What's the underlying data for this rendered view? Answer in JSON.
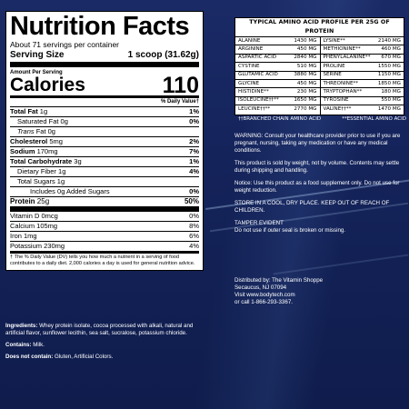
{
  "nutrition": {
    "title": "Nutrition Facts",
    "servings": "About 71 servings per container",
    "serving_size_label": "Serving Size",
    "serving_size_value": "1 scoop (31.62g)",
    "amount_per_serving": "Amount Per Serving",
    "calories_label": "Calories",
    "calories_value": "110",
    "daily_value_header": "% Daily Value†",
    "rows": [
      {
        "name": "Total Fat",
        "amount": "1g",
        "dv": "1%"
      },
      {
        "name": "Saturated Fat",
        "amount": "0g",
        "dv": "0%"
      },
      {
        "name": "Trans",
        "amount": "Fat 0g",
        "dv": ""
      },
      {
        "name": "Cholesterol",
        "amount": "5mg",
        "dv": "2%"
      },
      {
        "name": "Sodium",
        "amount": "170mg",
        "dv": "7%"
      },
      {
        "name": "Total Carbohydrate",
        "amount": "3g",
        "dv": "1%"
      },
      {
        "name": "Dietary Fiber",
        "amount": "1g",
        "dv": "4%"
      },
      {
        "name": "Total Sugars",
        "amount": "1g",
        "dv": ""
      },
      {
        "name": "Includes 0g Added Sugars",
        "amount": "",
        "dv": "0%"
      },
      {
        "name": "Protein",
        "amount": "25g",
        "dv": "50%"
      }
    ],
    "vitamins": [
      {
        "label": "Vitamin D 0mcg",
        "dv": "0%"
      },
      {
        "label": "Calcium 105mg",
        "dv": "8%"
      },
      {
        "label": "Iron 1mg",
        "dv": "6%"
      },
      {
        "label": "Potassium 230mg",
        "dv": "4%"
      }
    ],
    "footnote": "† The % Daily Value (DV) tells you how much a nutrient in a serving of food contributes to a daily diet. 2,000 calories a day is used for general nutrition advice."
  },
  "ingredients": {
    "label": "Ingredients:",
    "text": "Whey protein isolate, cocoa processed with alkali, natural and artificial flavor, sunflower lecithin, sea salt, sucralose, potassium chloride.",
    "contains_label": "Contains:",
    "contains_text": "Milk.",
    "not_contain_label": "Does not contain:",
    "not_contain_text": "Gluten, Artificial Colors."
  },
  "amino": {
    "title": "TYPICAL AMINO ACID PROFILE PER 25G OF PROTEIN",
    "rows": [
      [
        {
          "name": "Alanine",
          "value": "1430 mg"
        },
        {
          "name": "Lysine**",
          "value": "2140 mg"
        }
      ],
      [
        {
          "name": "Arginine",
          "value": "450 mg"
        },
        {
          "name": "Methionine**",
          "value": "460 mg"
        }
      ],
      [
        {
          "name": "Aspartic Acid",
          "value": "2840 mg"
        },
        {
          "name": "Phenylalanine**",
          "value": "670 mg"
        }
      ],
      [
        {
          "name": "Cystine",
          "value": "510 mg"
        },
        {
          "name": "Proline",
          "value": "1550 mg"
        }
      ],
      [
        {
          "name": "Glutamic Acid",
          "value": "3880 mg"
        },
        {
          "name": "Serine",
          "value": "1150 mg"
        }
      ],
      [
        {
          "name": "Glycine",
          "value": "450 mg"
        },
        {
          "name": "Threonine**",
          "value": "1850 mg"
        }
      ],
      [
        {
          "name": "Histidine**",
          "value": "230 mg"
        },
        {
          "name": "Tryptophan**",
          "value": "180 mg"
        }
      ],
      [
        {
          "name": "Isoleucine††**",
          "value": "1650 mg"
        },
        {
          "name": "Tyrosine",
          "value": "550 mg"
        }
      ],
      [
        {
          "name": "Leucine††**",
          "value": "2770 mg"
        },
        {
          "name": "Valine††**",
          "value": "1470 mg"
        }
      ]
    ],
    "legend_bcaa": "††Branched Chain Amino Acid",
    "legend_essential": "**Essential Amino Acid"
  },
  "notes": {
    "warning": "WARNING: Consult your healthcare provider prior to use if you are pregnant, nursing, taking any medication or have any medical conditions.",
    "weight": "This product is sold by weight, not by volume. Contents may settle during shipping and handling.",
    "notice": "Notice: Use this product as a food supplement only. Do not use for weight reduction.",
    "storage": "STORE IN A COOL, DRY PLACE. KEEP OUT OF REACH OF CHILDREN.",
    "tamper": "TAMPER EVIDENT",
    "tamper_text": "Do not use if outer seal is broken or missing."
  },
  "distributor": {
    "line1": "Distributed by: The Vitamin Shoppe",
    "line2": "Secaucus, NJ 07094",
    "line3": "Visit www.bodytech.com",
    "line4": "or call 1-866-293-3367."
  },
  "colors": {
    "background": "#16255a",
    "panel": "#ffffff",
    "text_on_dark": "#ffffff"
  }
}
